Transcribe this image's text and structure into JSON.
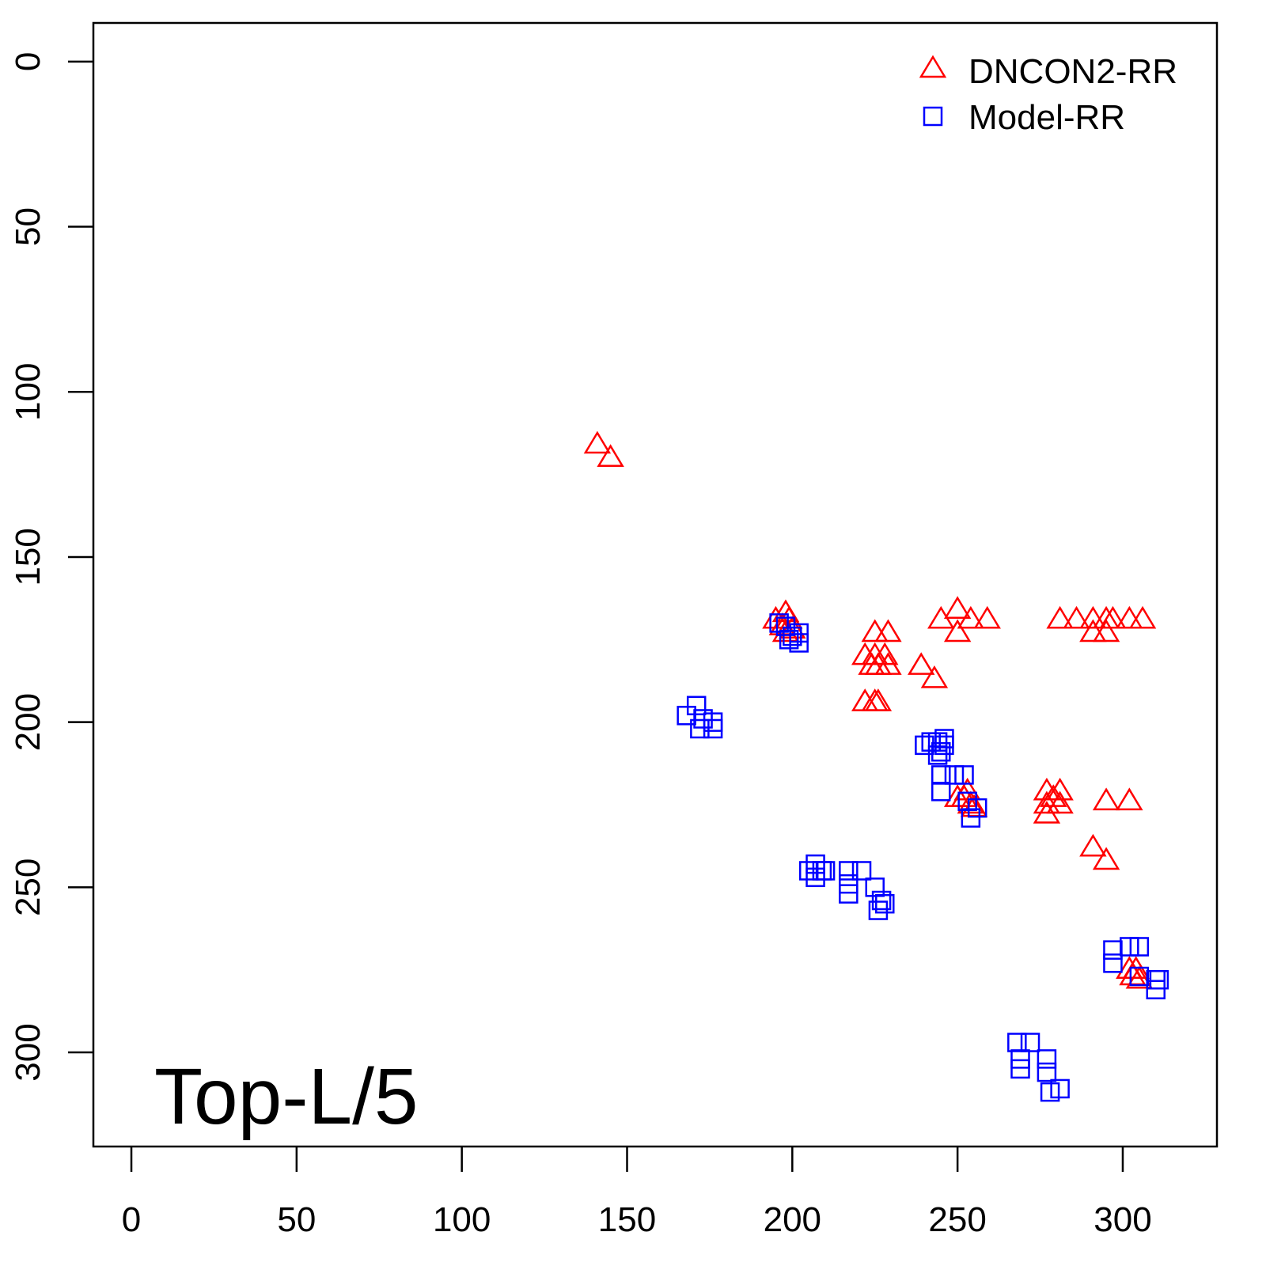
{
  "chart_data": {
    "type": "scatter",
    "title": "",
    "xlabel": "",
    "ylabel": "",
    "xlim": [
      -11.5,
      328.5
    ],
    "ylim": [
      -11.7,
      328.5
    ],
    "y_inverted": true,
    "grid": false,
    "x_ticks": [
      "0",
      "50",
      "100",
      "150",
      "200",
      "250",
      "300"
    ],
    "y_ticks": [
      "0",
      "50",
      "100",
      "150",
      "200",
      "250",
      "300"
    ],
    "annotation": "Top-L/5",
    "legend_position": "top-right",
    "series": [
      {
        "name": "DNCON2-RR",
        "marker": "triangle",
        "color": "#ff0000",
        "points": [
          [
            141,
            116
          ],
          [
            145,
            120
          ],
          [
            195,
            169
          ],
          [
            197,
            171
          ],
          [
            198,
            167
          ],
          [
            199,
            169
          ],
          [
            200,
            172
          ],
          [
            198,
            173
          ],
          [
            225,
            173
          ],
          [
            229,
            173
          ],
          [
            222,
            180
          ],
          [
            224,
            183
          ],
          [
            225,
            180
          ],
          [
            226,
            183
          ],
          [
            228,
            180
          ],
          [
            229,
            183
          ],
          [
            239,
            183
          ],
          [
            243,
            187
          ],
          [
            222,
            194
          ],
          [
            225,
            194
          ],
          [
            226,
            194
          ],
          [
            250,
            166
          ],
          [
            245,
            169
          ],
          [
            254,
            169
          ],
          [
            259,
            169
          ],
          [
            250,
            173
          ],
          [
            281,
            169
          ],
          [
            286,
            169
          ],
          [
            291,
            169
          ],
          [
            295,
            169
          ],
          [
            297,
            169
          ],
          [
            302,
            169
          ],
          [
            306,
            169
          ],
          [
            291,
            173
          ],
          [
            295,
            173
          ],
          [
            250,
            223
          ],
          [
            252,
            223
          ],
          [
            253,
            221
          ],
          [
            254,
            225
          ],
          [
            255,
            226
          ],
          [
            277,
            221
          ],
          [
            277,
            225
          ],
          [
            277,
            228
          ],
          [
            279,
            223
          ],
          [
            281,
            221
          ],
          [
            281,
            225
          ],
          [
            295,
            224
          ],
          [
            302,
            224
          ],
          [
            291,
            238
          ],
          [
            295,
            242
          ],
          [
            302,
            275
          ],
          [
            304,
            275
          ],
          [
            303,
            277
          ],
          [
            305,
            278
          ]
        ]
      },
      {
        "name": "Model-RR",
        "marker": "square",
        "color": "#0000ff",
        "points": [
          [
            196,
            170
          ],
          [
            198,
            171
          ],
          [
            200,
            174
          ],
          [
            202,
            173
          ],
          [
            202,
            176
          ],
          [
            199,
            175
          ],
          [
            168,
            198
          ],
          [
            171,
            195
          ],
          [
            173,
            199
          ],
          [
            172,
            202
          ],
          [
            176,
            200
          ],
          [
            176,
            202
          ],
          [
            240,
            207
          ],
          [
            242,
            206
          ],
          [
            244,
            206
          ],
          [
            245,
            209
          ],
          [
            246,
            207
          ],
          [
            246,
            205
          ],
          [
            244,
            210
          ],
          [
            245,
            216
          ],
          [
            245,
            221
          ],
          [
            249,
            216
          ],
          [
            252,
            216
          ],
          [
            253,
            224
          ],
          [
            256,
            226
          ],
          [
            254,
            229
          ],
          [
            207,
            243
          ],
          [
            205,
            245
          ],
          [
            209,
            245
          ],
          [
            210,
            245
          ],
          [
            207,
            247
          ],
          [
            217,
            245
          ],
          [
            221,
            245
          ],
          [
            217,
            252
          ],
          [
            217,
            249
          ],
          [
            225,
            250
          ],
          [
            227,
            254
          ],
          [
            228,
            255
          ],
          [
            226,
            257
          ],
          [
            297,
            269
          ],
          [
            302,
            268
          ],
          [
            305,
            268
          ],
          [
            297,
            273
          ],
          [
            305,
            277
          ],
          [
            310,
            278
          ],
          [
            311,
            278
          ],
          [
            310,
            281
          ],
          [
            268,
            297
          ],
          [
            272,
            297
          ],
          [
            269,
            302
          ],
          [
            269,
            305
          ],
          [
            277,
            302
          ],
          [
            277,
            306
          ],
          [
            278,
            312
          ],
          [
            281,
            311
          ]
        ]
      }
    ]
  }
}
